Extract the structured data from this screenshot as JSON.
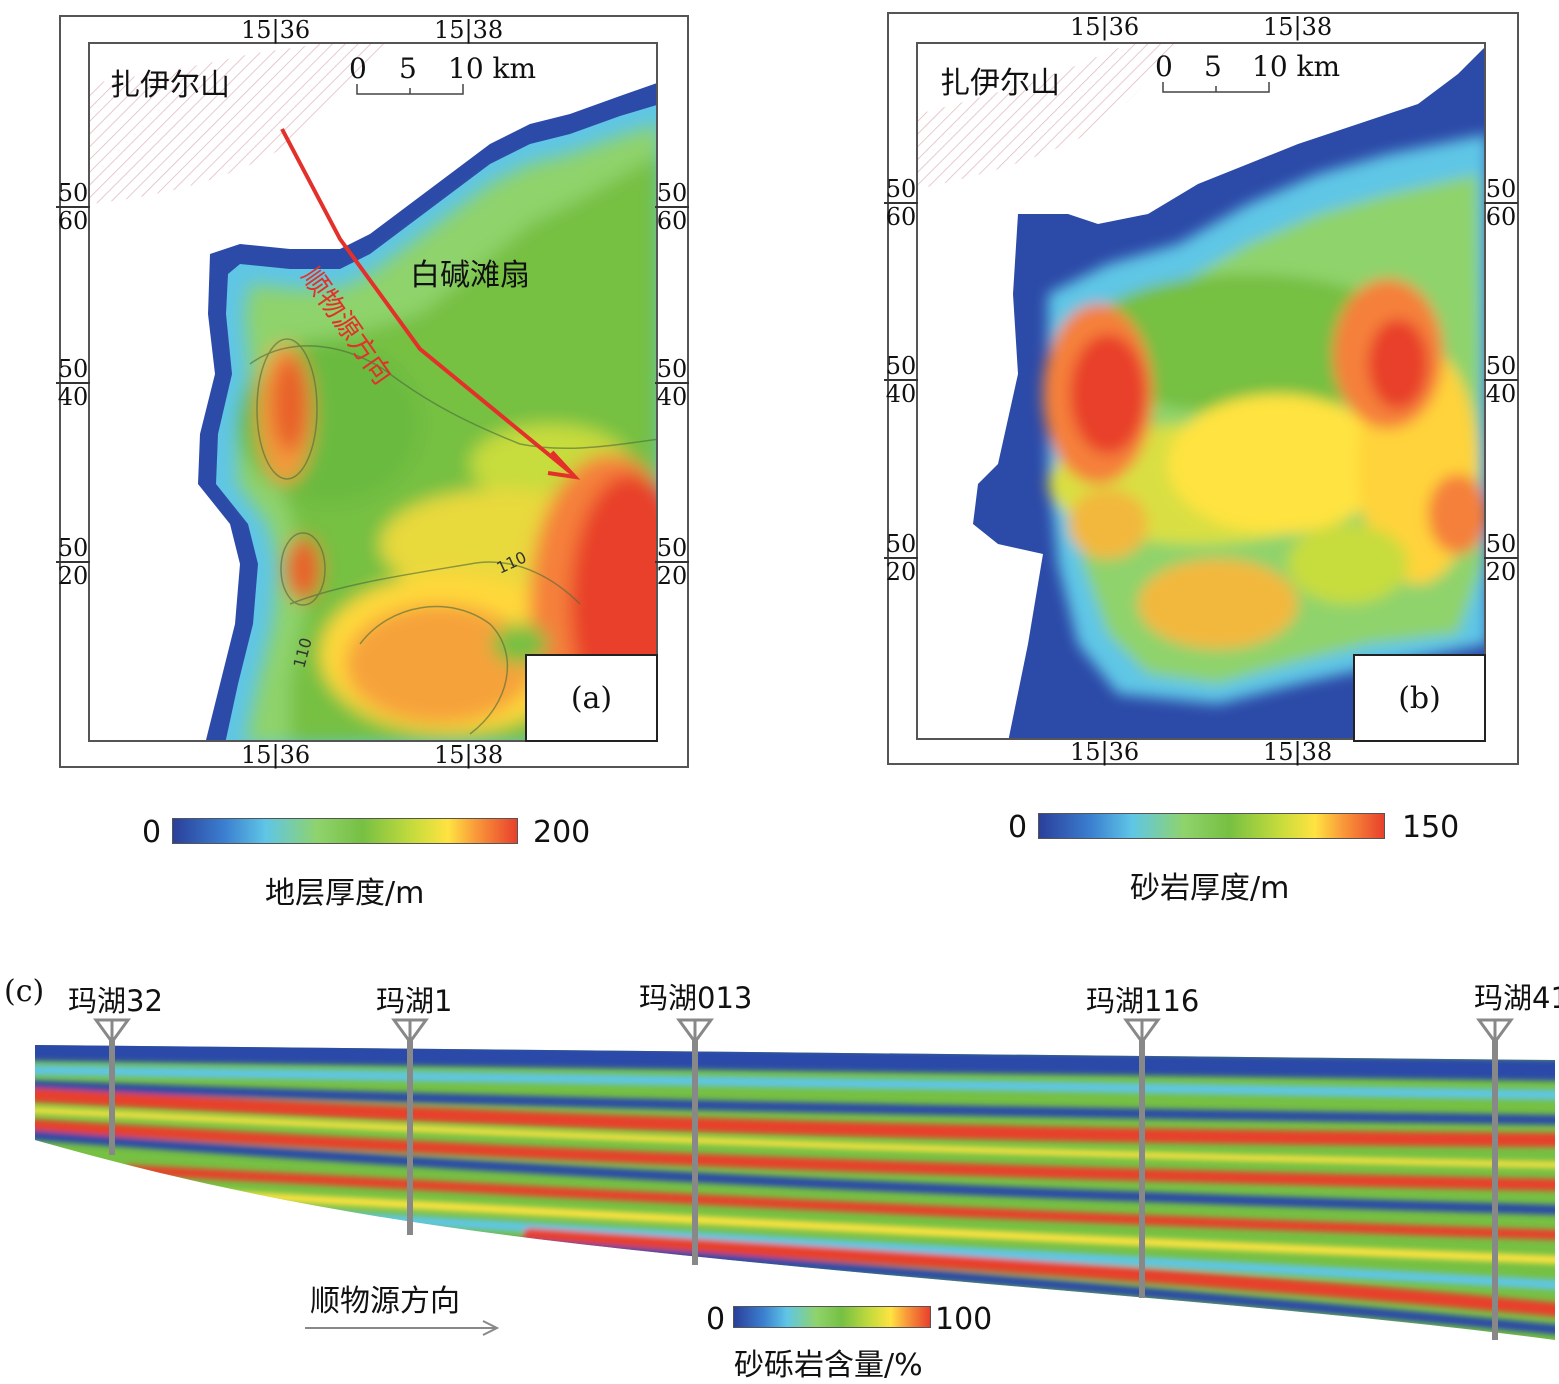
{
  "panel_a": {
    "label": "(a)",
    "place": "扎伊尔山",
    "fan": "白碱滩扇",
    "direction": "顺物源方向",
    "scale_0": "0",
    "scale_5": "5",
    "scale_10": "10 km",
    "lon_left": [
      "15",
      "36"
    ],
    "lon_right": [
      "15",
      "38"
    ],
    "lat": [
      [
        "50",
        "60"
      ],
      [
        "50",
        "40"
      ],
      [
        "50",
        "20"
      ]
    ],
    "contour": "110",
    "colorbar_min": "0",
    "colorbar_max": "200",
    "colorbar_title": "地层厚度/m"
  },
  "panel_b": {
    "label": "(b)",
    "place": "扎伊尔山",
    "scale_0": "0",
    "scale_5": "5",
    "scale_10": "10 km",
    "lon_left": [
      "15",
      "36"
    ],
    "lon_right": [
      "15",
      "38"
    ],
    "lat": [
      [
        "50",
        "60"
      ],
      [
        "50",
        "40"
      ],
      [
        "50",
        "20"
      ]
    ],
    "colorbar_min": "0",
    "colorbar_max": "150",
    "colorbar_title": "砂岩厚度/m"
  },
  "panel_c": {
    "label": "(c)",
    "wells": [
      "玛湖32",
      "玛湖1",
      "玛湖013",
      "玛湖116",
      "玛湖41"
    ],
    "direction": "顺物源方向",
    "colorbar_min": "0",
    "colorbar_max": "100",
    "colorbar_title": "砂砾岩含量/%"
  },
  "colors": {
    "low": "#2b3f9a",
    "cyan": "#5fc6e6",
    "green": "#76c043",
    "yellow": "#ffe341",
    "high": "#e8402c",
    "arrow": "#e3302a"
  }
}
